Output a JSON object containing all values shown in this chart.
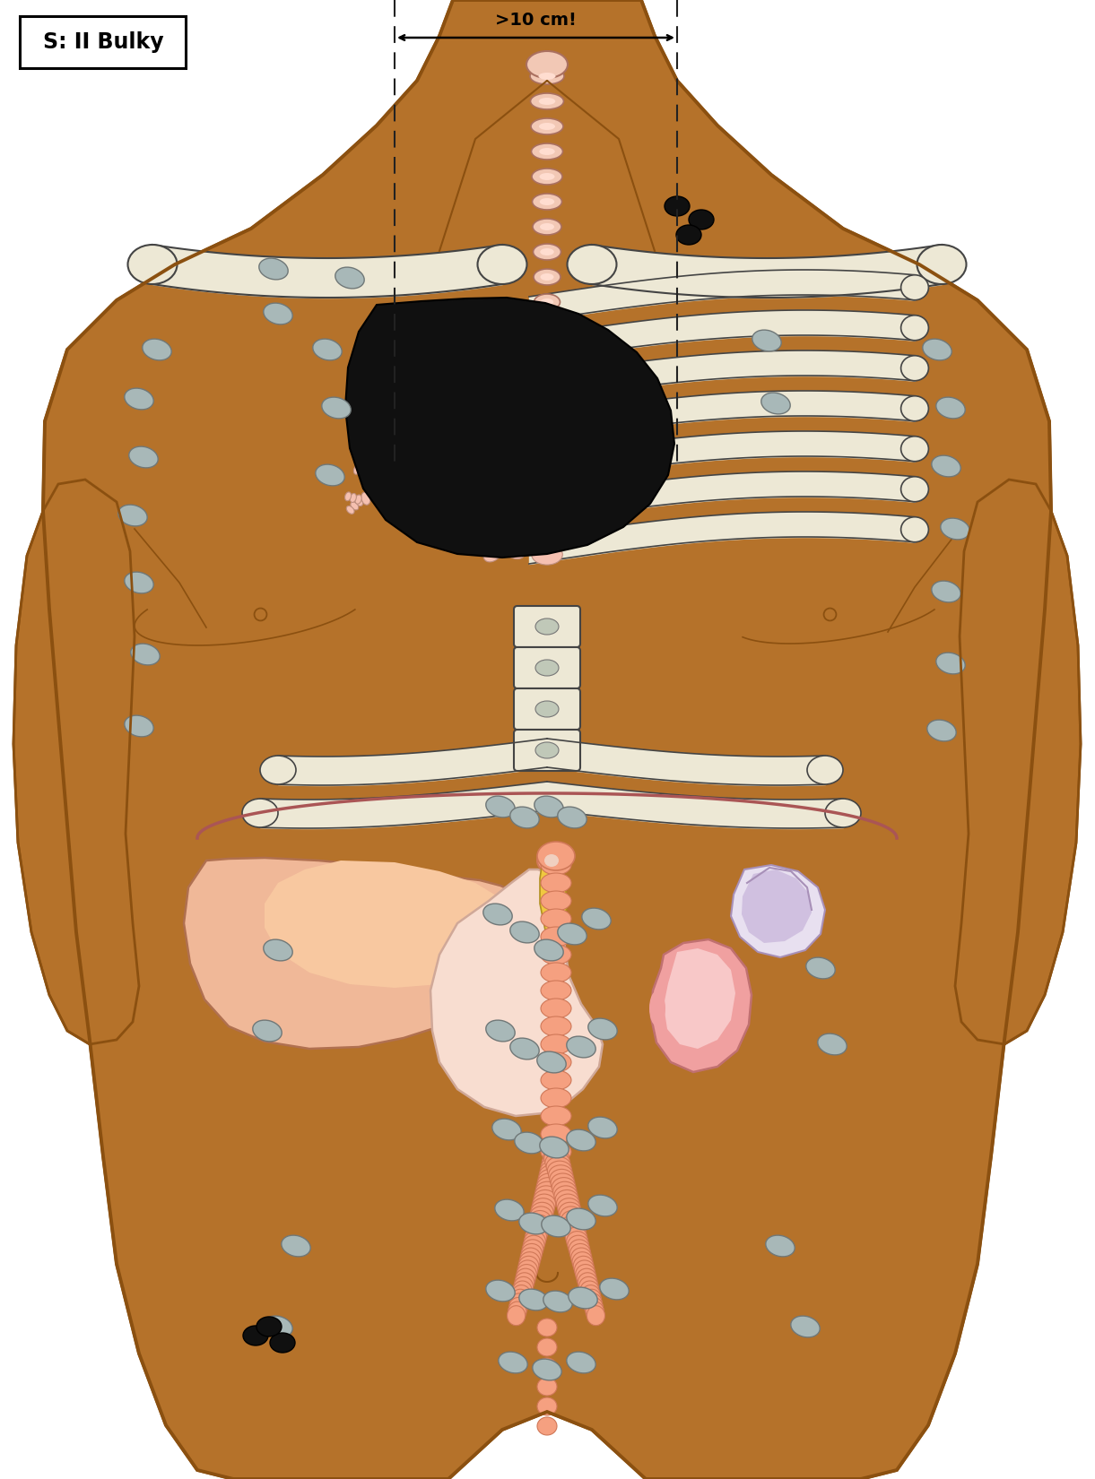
{
  "bg_color": "#ffffff",
  "skin_color": "#B5722A",
  "skin_outline": "#8B5010",
  "bone_color": "#EDE8D5",
  "bone_outline": "#444444",
  "trachea_color": "#F2C8B5",
  "trachea_outline": "#AA7060",
  "lymph_normal_color": "#A8B8B8",
  "lymph_normal_outline": "#707878",
  "lymph_black_color": "#101010",
  "tumor_color": "#101010",
  "liver_color": "#F0B898",
  "liver_color2": "#E8A070",
  "bile_color": "#F0C840",
  "stomach_color": "#F8DDD0",
  "stomach_outline": "#D0A898",
  "spleen_color": "#D8B8C8",
  "spleen_color2": "#C8A0B8",
  "kidney_color": "#F09898",
  "kidney_outline": "#C07070",
  "aorta_color": "#F5A080",
  "aorta_outline": "#D07858",
  "diaphragm_color": "#AA5555",
  "spine_color": "#EDE8D5",
  "spine_outline": "#444444",
  "dashed_line_color": "#222222",
  "label_box_color": "#ffffff",
  "label_outline": "#000000",
  "label_text": "S: II Bulky",
  "measurement_text": ">10 cm!",
  "figsize": [
    12.21,
    16.5
  ],
  "dpi": 100
}
